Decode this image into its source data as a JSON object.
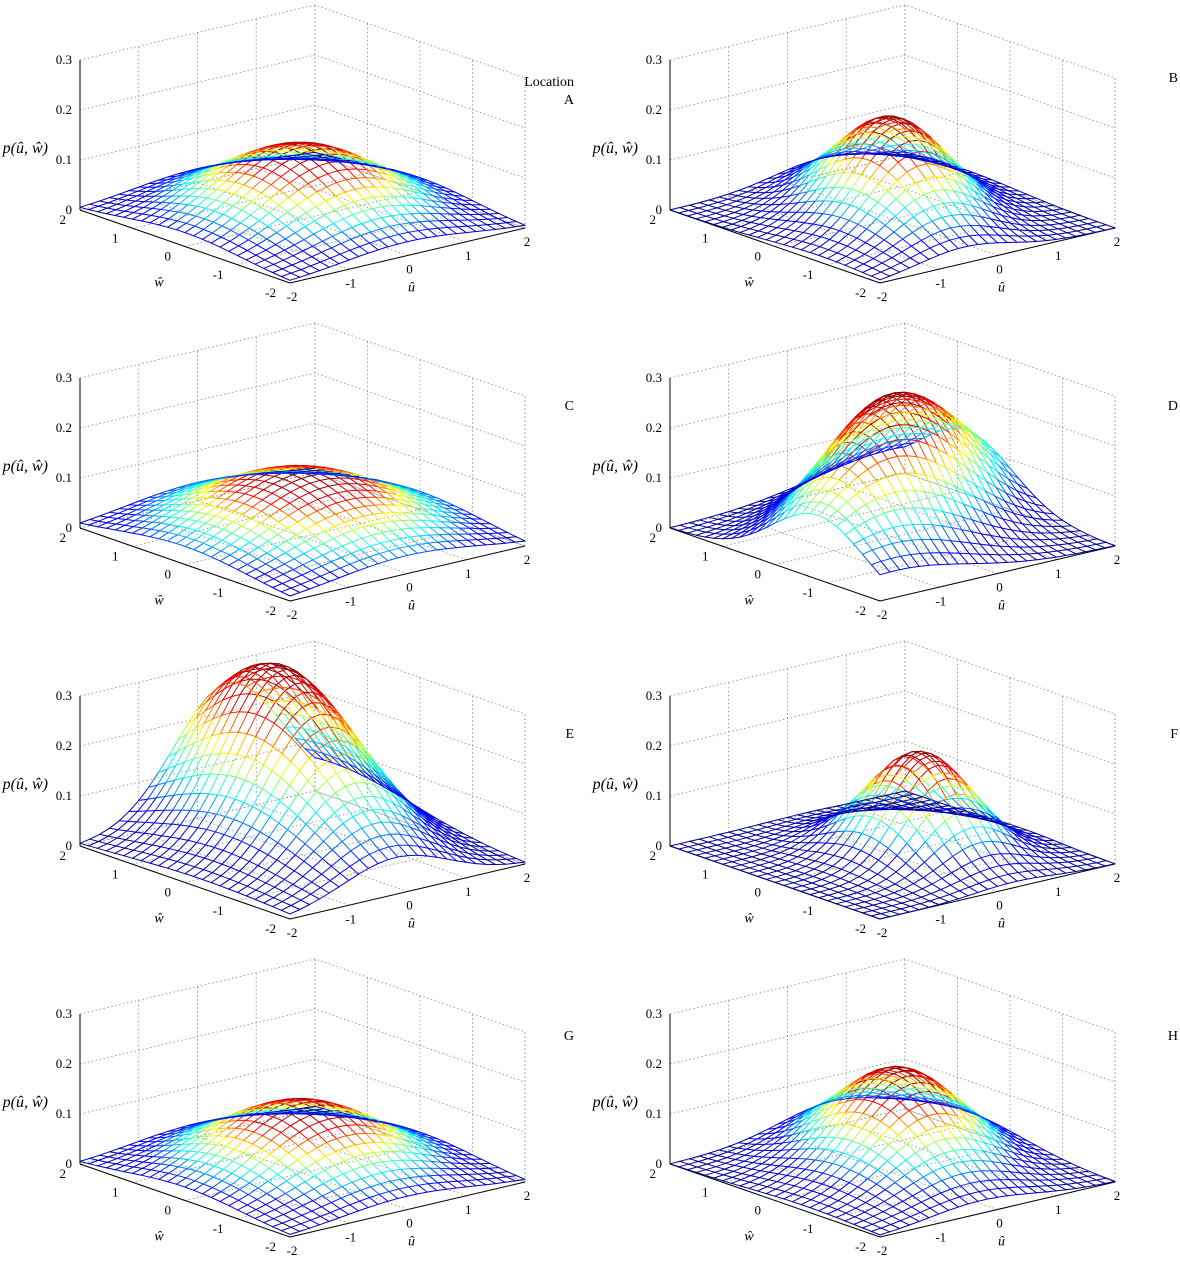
{
  "figure": {
    "panel_label_header": "Location"
  },
  "axis_labels": {
    "z": "p(û, ŵ)",
    "u": "û",
    "w": "ŵ"
  },
  "colors": {
    "colormap": [
      "#00008f",
      "#0000ff",
      "#00ffff",
      "#ffff00",
      "#ff0000",
      "#800000"
    ],
    "grid": "#888888",
    "axes": "#000000"
  },
  "chart_data": [
    {
      "type": "surface",
      "title": "A",
      "xlabel": "û",
      "ylabel": "ŵ",
      "zlabel": "p(û, ŵ)",
      "xlim": [
        -2,
        2
      ],
      "ylim": [
        -2,
        2
      ],
      "zlim": [
        0,
        0.3
      ],
      "xticks": [
        -2,
        -1,
        0,
        1,
        2
      ],
      "yticks": [
        -2,
        -1,
        0,
        1,
        2
      ],
      "zticks": [
        0,
        0.1,
        0.2,
        0.3
      ],
      "grid": true,
      "surface": {
        "peak_z": 0.145,
        "peak_u": 0,
        "peak_w": 0,
        "sigma_u": 1.1,
        "sigma_w": 1.1,
        "rho": 0
      }
    },
    {
      "type": "surface",
      "title": "B",
      "xlabel": "û",
      "ylabel": "ŵ",
      "zlabel": "p(û, ŵ)",
      "xlim": [
        -2,
        2
      ],
      "ylim": [
        -2,
        2
      ],
      "zlim": [
        0,
        0.3
      ],
      "xticks": [
        -2,
        -1,
        0,
        1,
        2
      ],
      "yticks": [
        -2,
        -1,
        0,
        1,
        2
      ],
      "zticks": [
        0,
        0.1,
        0.2,
        0.3
      ],
      "grid": true,
      "surface": {
        "peak_z": 0.2,
        "peak_u": 0,
        "peak_w": 0,
        "sigma_u": 0.85,
        "sigma_w": 1.05,
        "rho": 0.35
      }
    },
    {
      "type": "surface",
      "title": "C",
      "xlabel": "û",
      "ylabel": "ŵ",
      "zlabel": "p(û, ŵ)",
      "xlim": [
        -2,
        2
      ],
      "ylim": [
        -2,
        2
      ],
      "zlim": [
        0,
        0.3
      ],
      "xticks": [
        -2,
        -1,
        0,
        1,
        2
      ],
      "yticks": [
        -2,
        -1,
        0,
        1,
        2
      ],
      "zticks": [
        0,
        0.1,
        0.2,
        0.3
      ],
      "grid": true,
      "surface": {
        "peak_z": 0.13,
        "peak_u": 0,
        "peak_w": 0,
        "sigma_u": 1.25,
        "sigma_w": 1.25,
        "rho": 0
      }
    },
    {
      "type": "surface",
      "title": "D",
      "xlabel": "û",
      "ylabel": "ŵ",
      "zlabel": "p(û, ŵ)",
      "xlim": [
        -2,
        2
      ],
      "ylim": [
        -2,
        2
      ],
      "zlim": [
        0,
        0.3
      ],
      "xticks": [
        -2,
        -1,
        0,
        1,
        2
      ],
      "yticks": [
        -2,
        -1,
        0,
        1,
        2
      ],
      "zticks": [
        0,
        0.1,
        0.2,
        0.3
      ],
      "grid": true,
      "surface": {
        "peak_z": 0.28,
        "peak_u": 0,
        "peak_w": 0,
        "sigma_u": 1.6,
        "sigma_w": 1.1,
        "rho": 0.6
      }
    },
    {
      "type": "surface",
      "title": "E",
      "xlabel": "û",
      "ylabel": "ŵ",
      "zlabel": "p(û, ŵ)",
      "xlim": [
        -2,
        2
      ],
      "ylim": [
        -2,
        2
      ],
      "zlim": [
        0,
        0.3
      ],
      "xticks": [
        -2,
        -1,
        0,
        1,
        2
      ],
      "yticks": [
        -2,
        -1,
        0,
        1,
        2
      ],
      "zticks": [
        0,
        0.1,
        0.2,
        0.3
      ],
      "grid": true,
      "surface": {
        "peak_z": 0.34,
        "peak_u": 0.3,
        "peak_w": 0.8,
        "sigma_u": 0.95,
        "sigma_w": 1.6,
        "rho": 0.3
      }
    },
    {
      "type": "surface",
      "title": "F",
      "xlabel": "û",
      "ylabel": "ŵ",
      "zlabel": "p(û, ŵ)",
      "xlim": [
        -2,
        2
      ],
      "ylim": [
        -2,
        2
      ],
      "zlim": [
        0,
        0.3
      ],
      "xticks": [
        -2,
        -1,
        0,
        1,
        2
      ],
      "yticks": [
        -2,
        -1,
        0,
        1,
        2
      ],
      "zticks": [
        0,
        0.1,
        0.2,
        0.3
      ],
      "grid": true,
      "surface": {
        "peak_z": 0.205,
        "peak_u": 0.3,
        "peak_w": -0.2,
        "sigma_u": 0.65,
        "sigma_w": 0.75,
        "rho": 0
      }
    },
    {
      "type": "surface",
      "title": "G",
      "xlabel": "û",
      "ylabel": "ŵ",
      "zlabel": "p(û, ŵ)",
      "xlim": [
        -2,
        2
      ],
      "ylim": [
        -2,
        2
      ],
      "zlim": [
        0,
        0.3
      ],
      "xticks": [
        -2,
        -1,
        0,
        1,
        2
      ],
      "yticks": [
        -2,
        -1,
        0,
        1,
        2
      ],
      "zticks": [
        0,
        0.1,
        0.2,
        0.3
      ],
      "grid": true,
      "surface": {
        "peak_z": 0.14,
        "peak_u": 0,
        "peak_w": 0,
        "sigma_u": 1.1,
        "sigma_w": 1.1,
        "rho": 0
      }
    },
    {
      "type": "surface",
      "title": "H",
      "xlabel": "û",
      "ylabel": "ŵ",
      "zlabel": "p(û, ŵ)",
      "xlim": [
        -2,
        2
      ],
      "ylim": [
        -2,
        2
      ],
      "zlim": [
        0,
        0.3
      ],
      "xticks": [
        -2,
        -1,
        0,
        1,
        2
      ],
      "yticks": [
        -2,
        -1,
        0,
        1,
        2
      ],
      "zticks": [
        0,
        0.1,
        0.2,
        0.3
      ],
      "grid": true,
      "surface": {
        "peak_z": 0.19,
        "peak_u": 0.3,
        "peak_w": 0.2,
        "sigma_u": 0.95,
        "sigma_w": 1.1,
        "rho": 0.3
      }
    }
  ]
}
